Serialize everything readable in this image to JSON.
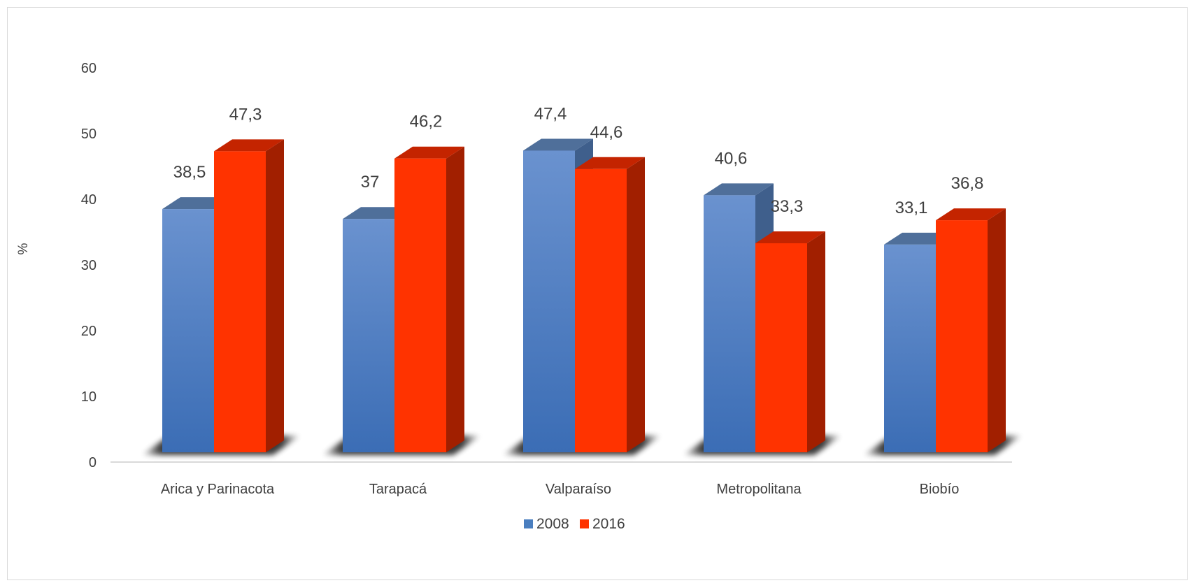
{
  "chart_data": {
    "type": "bar",
    "variant": "3d-clustered-column",
    "title": "",
    "xlabel": "",
    "ylabel": "%",
    "ylim": [
      0,
      60
    ],
    "yticks": [
      "0",
      "10",
      "20",
      "30",
      "40",
      "50",
      "60"
    ],
    "categories": [
      "Arica y Parinacota",
      "Tarapacá",
      "Valparaíso",
      "Metropolitana",
      "Biobío"
    ],
    "series": [
      {
        "name": "2008",
        "values": [
          38.5,
          37,
          47.4,
          40.6,
          33.1
        ],
        "labels": [
          "38,5",
          "37",
          "47,4",
          "40,6",
          "33,1"
        ],
        "color": "#4a7ebf"
      },
      {
        "name": "2016",
        "values": [
          47.3,
          46.2,
          44.6,
          33.3,
          36.8
        ],
        "labels": [
          "47,3",
          "46,2",
          "44,6",
          "33,3",
          "36,8"
        ],
        "color": "#ff3300"
      }
    ],
    "legend_position": "bottom",
    "grid": false
  }
}
